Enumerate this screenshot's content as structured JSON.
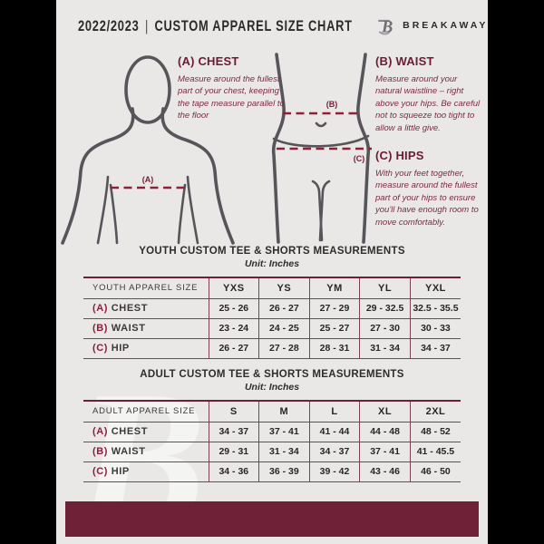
{
  "header": {
    "season": "2022/2023",
    "divider": "|",
    "title": "CUSTOM APPAREL SIZE CHART",
    "brand": "BREAKAWAY",
    "logo_mark": "B"
  },
  "diagram": {
    "label_a": "(A)",
    "label_b": "(B)",
    "label_c": "(C)"
  },
  "guide": {
    "chest": {
      "heading": "(A) CHEST",
      "body": "Measure around the fullest part of your chest, keeping the tape measure parallel to the floor"
    },
    "waist": {
      "heading": "(B) WAIST",
      "body": "Measure around your natural waistline – right above your hips. Be careful not to squeeze too tight to allow a little give."
    },
    "hips": {
      "heading": "(C) HIPS",
      "body": "With your feet together, measure around the fullest part of your hips to ensure you'll have enough room to move comfortably."
    }
  },
  "youth_table": {
    "title": "YOUTH CUSTOM TEE & SHORTS MEASUREMENTS",
    "unit": "Unit: Inches",
    "header": [
      "YOUTH APPAREL SIZE",
      "YXS",
      "YS",
      "YM",
      "YL",
      "YXL"
    ],
    "rows": [
      {
        "key": "(A)",
        "label": "CHEST",
        "values": [
          "25 - 26",
          "26 - 27",
          "27 - 29",
          "29 - 32.5",
          "32.5 - 35.5"
        ]
      },
      {
        "key": "(B)",
        "label": "WAIST",
        "values": [
          "23 - 24",
          "24 - 25",
          "25 - 27",
          "27 - 30",
          "30 - 33"
        ]
      },
      {
        "key": "(C)",
        "label": "HIP",
        "values": [
          "26 - 27",
          "27 - 28",
          "28 - 31",
          "31 - 34",
          "34 - 37"
        ]
      }
    ]
  },
  "adult_table": {
    "title": "ADULT CUSTOM TEE & SHORTS MEASUREMENTS",
    "unit": "Unit: Inches",
    "header": [
      "ADULT APPAREL SIZE",
      "S",
      "M",
      "L",
      "XL",
      "2XL"
    ],
    "rows": [
      {
        "key": "(A)",
        "label": "CHEST",
        "values": [
          "34 - 37",
          "37 - 41",
          "41 - 44",
          "44 - 48",
          "48 - 52"
        ]
      },
      {
        "key": "(B)",
        "label": "WAIST",
        "values": [
          "29 - 31",
          "31 - 34",
          "34 - 37",
          "37 - 41",
          "41 - 45.5"
        ]
      },
      {
        "key": "(C)",
        "label": "HIP",
        "values": [
          "34 - 36",
          "36 - 39",
          "39 - 42",
          "43 - 46",
          "46 - 50"
        ]
      }
    ]
  },
  "watermark": "B",
  "colors": {
    "maroon_bar": "#6F2138",
    "accent_line": "#8E2038",
    "heading_maroon": "#6D1B34",
    "background": "#E9E8E7",
    "frame": "#000000"
  }
}
